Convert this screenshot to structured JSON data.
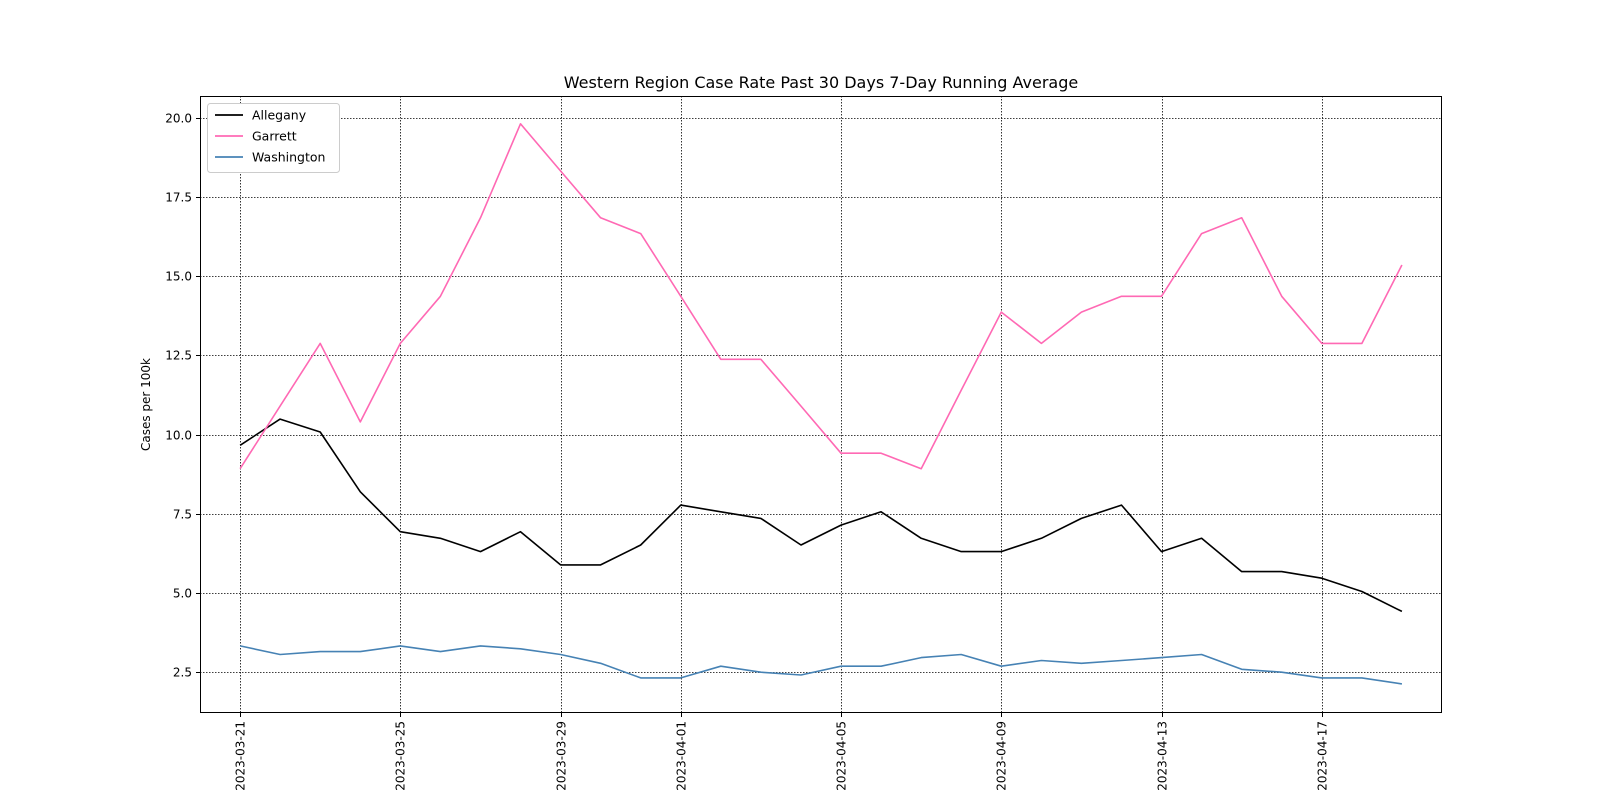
{
  "chart_data": {
    "type": "line",
    "title": "Western Region Case Rate  Past 30 Days 7-Day Running Average",
    "xlabel": "",
    "ylabel": "Cases per 100k",
    "x": [
      "2023-03-21",
      "2023-03-22",
      "2023-03-23",
      "2023-03-24",
      "2023-03-25",
      "2023-03-26",
      "2023-03-27",
      "2023-03-28",
      "2023-03-29",
      "2023-03-30",
      "2023-03-31",
      "2023-04-01",
      "2023-04-02",
      "2023-04-03",
      "2023-04-04",
      "2023-04-05",
      "2023-04-06",
      "2023-04-07",
      "2023-04-08",
      "2023-04-09",
      "2023-04-10",
      "2023-04-11",
      "2023-04-12",
      "2023-04-13",
      "2023-04-14",
      "2023-04-15",
      "2023-04-16",
      "2023-04-17",
      "2023-04-18",
      "2023-04-19"
    ],
    "xlim": [
      "2023-03-20",
      "2023-04-20"
    ],
    "ylim": [
      1.2,
      20.7
    ],
    "x_ticks": [
      "2023-03-21",
      "2023-03-25",
      "2023-03-29",
      "2023-04-01",
      "2023-04-05",
      "2023-04-09",
      "2023-04-13",
      "2023-04-17"
    ],
    "y_ticks": [
      2.5,
      5.0,
      7.5,
      10.0,
      12.5,
      15.0,
      17.5,
      20.0
    ],
    "y_tick_labels": [
      "2.5",
      "5.0",
      "7.5",
      "10.0",
      "12.5",
      "15.0",
      "17.5",
      "20.0"
    ],
    "grid": true,
    "legend_position": "top-left",
    "series": [
      {
        "name": "Allegany",
        "color": "#000000",
        "values": [
          9.66,
          10.49,
          10.08,
          8.19,
          6.93,
          6.72,
          6.3,
          6.93,
          5.88,
          5.88,
          6.51,
          7.77,
          7.56,
          7.35,
          6.51,
          7.14,
          7.56,
          6.72,
          6.3,
          6.3,
          6.72,
          7.35,
          7.77,
          6.3,
          6.72,
          5.67,
          5.67,
          5.46,
          5.04,
          4.41
        ]
      },
      {
        "name": "Garrett",
        "color": "#ff69b4",
        "values": [
          8.92,
          10.9,
          12.88,
          10.4,
          12.88,
          14.37,
          16.85,
          19.82,
          18.33,
          16.85,
          16.35,
          14.37,
          12.38,
          12.38,
          10.9,
          9.41,
          9.41,
          8.92,
          11.4,
          13.87,
          12.88,
          13.87,
          14.37,
          14.37,
          16.35,
          16.85,
          14.37,
          12.88,
          12.88,
          15.36
        ]
      },
      {
        "name": "Washington",
        "color": "#4682b4",
        "values": [
          3.32,
          3.05,
          3.14,
          3.14,
          3.32,
          3.14,
          3.32,
          3.23,
          3.05,
          2.77,
          2.31,
          2.31,
          2.68,
          2.49,
          2.4,
          2.68,
          2.68,
          2.95,
          3.05,
          2.68,
          2.86,
          2.77,
          2.86,
          2.95,
          3.05,
          2.58,
          2.49,
          2.31,
          2.31,
          2.12
        ]
      }
    ]
  }
}
